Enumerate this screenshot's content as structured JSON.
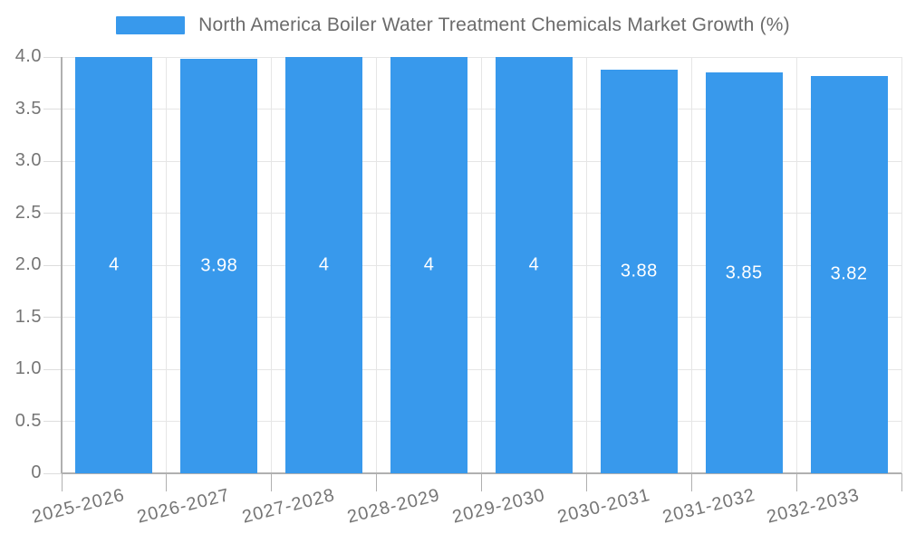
{
  "chart_data": {
    "type": "bar",
    "title": "North America Boiler Water Treatment Chemicals Market Growth (%)",
    "xlabel": "",
    "ylabel": "",
    "categories": [
      "2025-2026",
      "2026-2027",
      "2027-2028",
      "2028-2029",
      "2029-2030",
      "2030-2031",
      "2031-2032",
      "2032-2033"
    ],
    "values": [
      4,
      3.98,
      4,
      4,
      4,
      3.88,
      3.85,
      3.82
    ],
    "value_labels": [
      "4",
      "3.98",
      "4",
      "4",
      "4",
      "3.88",
      "3.85",
      "3.82"
    ],
    "ylim": [
      0,
      4
    ],
    "y_tick_labels": [
      "4.0",
      "3.5",
      "3.0",
      "2.5",
      "2.0",
      "1.5",
      "1.0",
      "0.5",
      "0"
    ],
    "grid": true,
    "legend_position": "top"
  },
  "colors": {
    "bar": "#3899ec",
    "grid": "#e6e6e6",
    "axis": "#b0b0b0",
    "x_tick": "#b0b0b0",
    "y_tick": "#dddddd",
    "axis_text": "#757575",
    "title_text": "#6b6b6b",
    "bar_label_text": "#ffffff"
  }
}
